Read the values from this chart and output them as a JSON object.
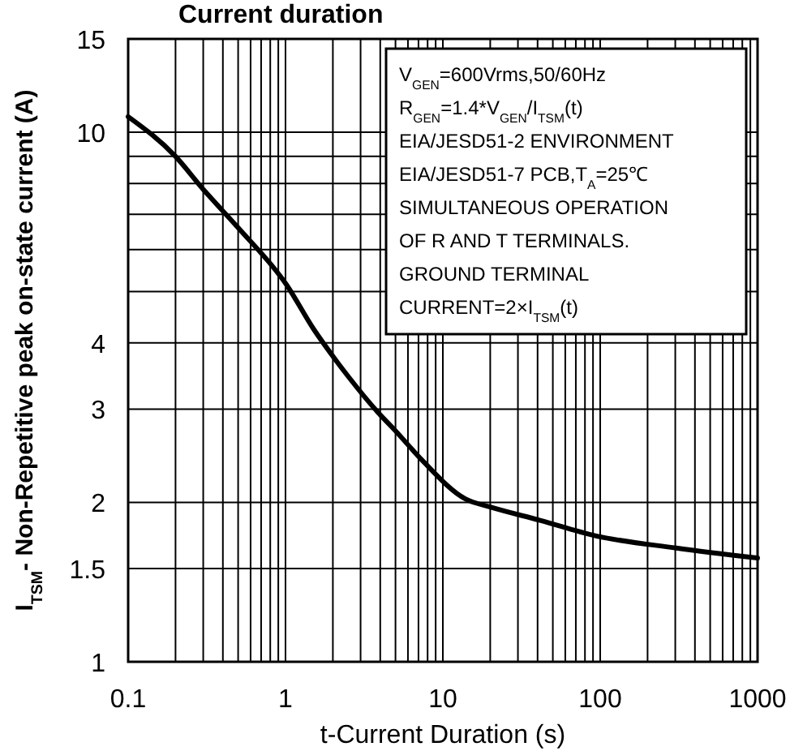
{
  "chart_data": {
    "type": "line",
    "title": "Current duration",
    "xlabel": "t-Current Duration (s)",
    "ylabel": "I$_{TSM}$- Non-Repetitive peak on-state current (A)",
    "log": "xy",
    "grid": true,
    "marker": "none",
    "line_style": "solid",
    "xlim": [
      0.1,
      1000
    ],
    "ylim": [
      1,
      15
    ],
    "xticks": [
      0.1,
      {
        "value": 0.2,
        "label": null
      },
      {
        "value": 0.3,
        "label": null
      },
      {
        "value": 0.4,
        "label": null
      },
      {
        "value": 0.5,
        "label": null
      },
      {
        "value": 0.6,
        "label": null
      },
      {
        "value": 0.7,
        "label": null
      },
      {
        "value": 0.8,
        "label": null
      },
      {
        "value": 0.9,
        "label": null
      },
      1,
      {
        "value": 2,
        "label": null
      },
      {
        "value": 3,
        "label": null
      },
      {
        "value": 4,
        "label": null
      },
      {
        "value": 5,
        "label": null
      },
      {
        "value": 6,
        "label": null
      },
      {
        "value": 7,
        "label": null
      },
      {
        "value": 8,
        "label": null
      },
      {
        "value": 9,
        "label": null
      },
      10,
      {
        "value": 20,
        "label": null
      },
      {
        "value": 30,
        "label": null
      },
      {
        "value": 40,
        "label": null
      },
      {
        "value": 50,
        "label": null
      },
      {
        "value": 60,
        "label": null
      },
      {
        "value": 70,
        "label": null
      },
      {
        "value": 80,
        "label": null
      },
      {
        "value": 90,
        "label": null
      },
      100,
      {
        "value": 200,
        "label": null
      },
      {
        "value": 300,
        "label": null
      },
      {
        "value": 400,
        "label": null
      },
      {
        "value": 500,
        "label": null
      },
      {
        "value": 600,
        "label": null
      },
      {
        "value": 700,
        "label": null
      },
      {
        "value": 800,
        "label": null
      },
      {
        "value": 900,
        "label": null
      },
      1000
    ],
    "yticks": [
      1,
      1.5,
      2,
      3,
      4,
      {
        "value": 5,
        "label": null
      },
      {
        "value": 6,
        "label": null
      },
      {
        "value": 7,
        "label": null
      },
      {
        "value": 8,
        "label": null
      },
      {
        "value": 9,
        "label": null
      },
      10,
      15
    ],
    "x": [
      0.1,
      0.2,
      0.3,
      0.5,
      1.02,
      1.5,
      2.09,
      2.5,
      3.9,
      5,
      7.4,
      13.9,
      20,
      41.5,
      93,
      305,
      1000
    ],
    "series": [
      {
        "color": "#000000",
        "values": [
          10.7,
          9,
          7.8,
          6.6,
          5.14,
          4.26,
          3.71,
          3.46,
          2.95,
          2.73,
          2.4,
          2.03,
          1.96,
          1.85,
          1.73,
          1.64,
          1.57
        ]
      }
    ],
    "annotations": [
      "V$_{GEN}$=600Vrms,50/60Hz",
      "R$_{GEN}$=1.4*V$_{GEN}$/I$_{TSM}$(t)",
      "EIA/JESD51-2 ENVIRONMENT",
      "EIA/JESD51-7 PCB,T$_{A}$=25℃",
      "SIMULTANEOUS OPERATION",
      "OF R AND T TERMINALS.",
      "GROUND TERMINAL",
      "CURRENT=2×I$_{TSM}$(t)"
    ]
  }
}
